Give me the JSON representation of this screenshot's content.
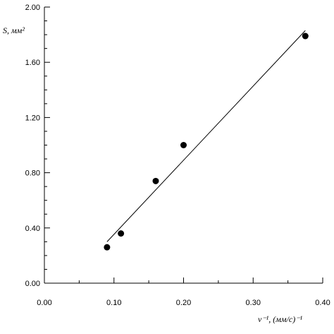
{
  "chart_data": {
    "type": "scatter",
    "title": "",
    "xlabel": "v⁻¹, (мм/с)⁻¹",
    "ylabel": "S, мм²",
    "xlim": [
      0.0,
      0.4
    ],
    "ylim": [
      0.0,
      2.0
    ],
    "x_ticks": [
      "0.00",
      "0.10",
      "0.20",
      "0.30",
      "0.40"
    ],
    "y_ticks": [
      "0.00",
      "0.40",
      "0.80",
      "1.20",
      "1.60",
      "2.00"
    ],
    "grid": false,
    "legend": "none",
    "points": [
      {
        "x": 0.09,
        "y": 0.26
      },
      {
        "x": 0.11,
        "y": 0.36
      },
      {
        "x": 0.16,
        "y": 0.74
      },
      {
        "x": 0.2,
        "y": 1.0
      },
      {
        "x": 0.375,
        "y": 1.79
      }
    ],
    "fit_line": {
      "x": [
        0.09,
        0.375
      ],
      "y": [
        0.3,
        1.83
      ]
    },
    "colors": {
      "points": "#000000",
      "line": "#000000",
      "axes": "#000000"
    }
  }
}
